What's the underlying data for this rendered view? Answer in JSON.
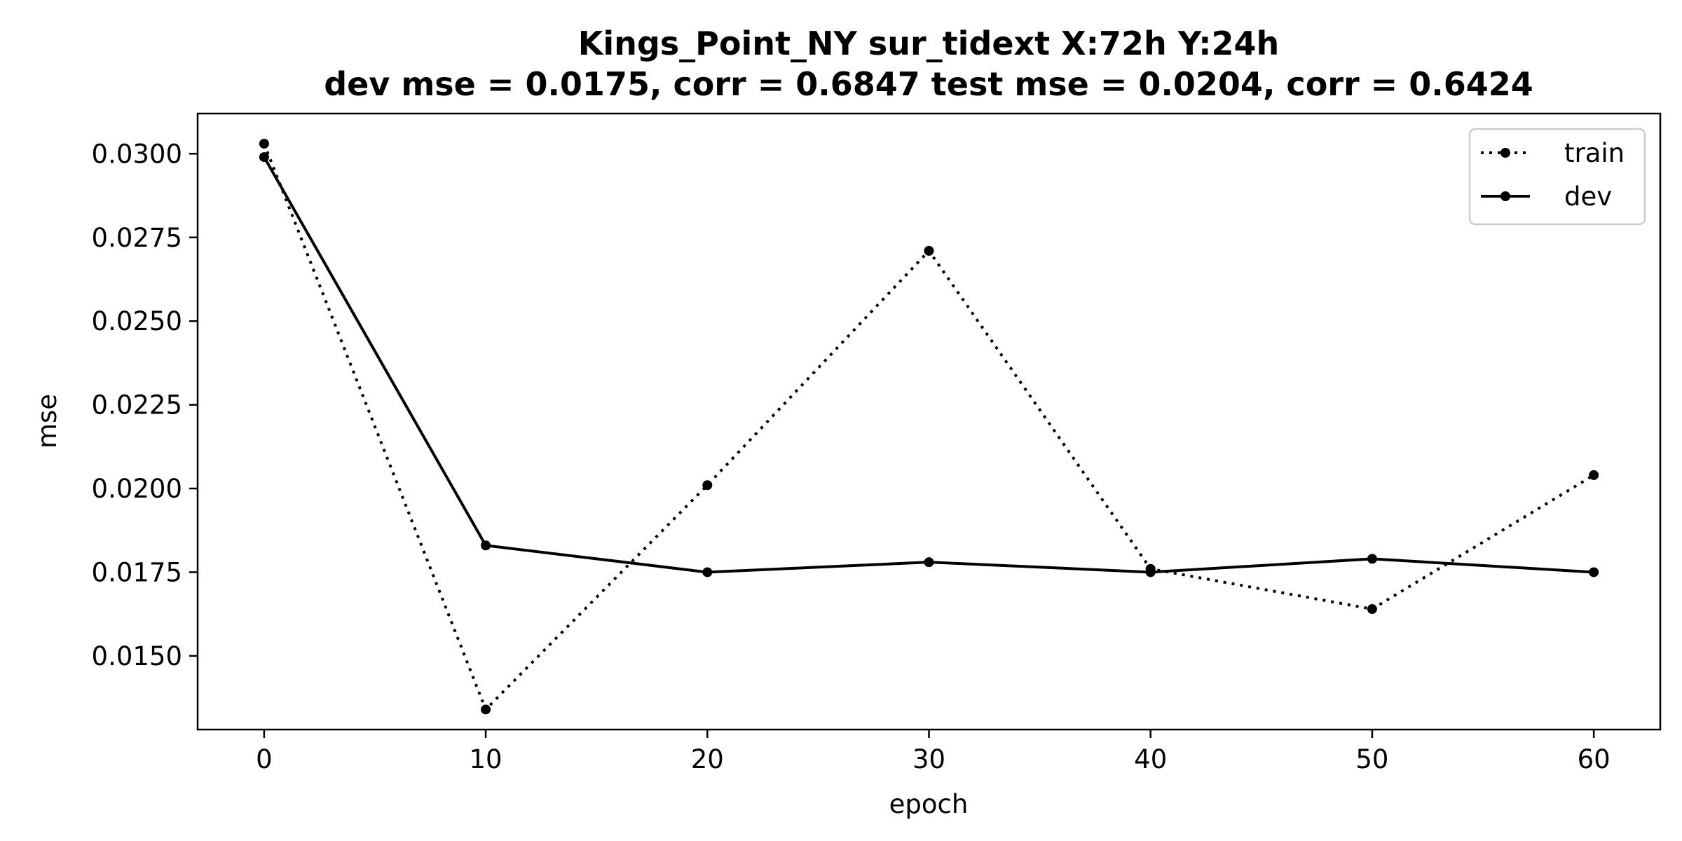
{
  "chart_data": {
    "type": "line",
    "title_line1": "Kings_Point_NY   sur_tidext   X:72h   Y:24h",
    "title_line2": "dev mse = 0.0175, corr = 0.6847   test mse = 0.0204, corr = 0.6424",
    "xlabel": "epoch",
    "ylabel": "mse",
    "xlim": [
      -3,
      63
    ],
    "ylim": [
      0.0128,
      0.0312
    ],
    "xticks": [
      0,
      10,
      20,
      30,
      40,
      50,
      60
    ],
    "yticks": [
      0.015,
      0.0175,
      0.02,
      0.0225,
      0.025,
      0.0275,
      0.03
    ],
    "ytick_labels": [
      "0.0150",
      "0.0175",
      "0.0200",
      "0.0225",
      "0.0250",
      "0.0275",
      "0.0300"
    ],
    "legend_position": "top-right",
    "grid": false,
    "x": [
      0,
      10,
      20,
      30,
      40,
      50,
      60
    ],
    "series": [
      {
        "name": "train",
        "style": "dotted",
        "color": "#000000",
        "values": [
          0.0303,
          0.0134,
          0.0201,
          0.0271,
          0.0176,
          0.0164,
          0.0204
        ]
      },
      {
        "name": "dev",
        "style": "solid",
        "color": "#000000",
        "values": [
          0.0299,
          0.0183,
          0.0175,
          0.0178,
          0.0175,
          0.0179,
          0.0175
        ]
      }
    ]
  }
}
